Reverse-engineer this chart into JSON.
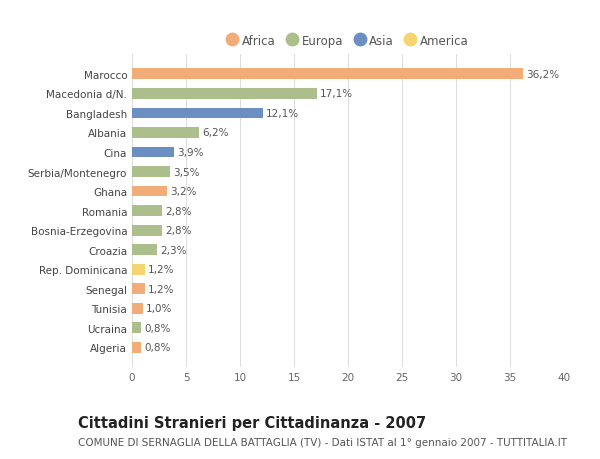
{
  "countries": [
    "Marocco",
    "Macedonia d/N.",
    "Bangladesh",
    "Albania",
    "Cina",
    "Serbia/Montenegro",
    "Ghana",
    "Romania",
    "Bosnia-Erzegovina",
    "Croazia",
    "Rep. Dominicana",
    "Senegal",
    "Tunisia",
    "Ucraina",
    "Algeria"
  ],
  "values": [
    36.2,
    17.1,
    12.1,
    6.2,
    3.9,
    3.5,
    3.2,
    2.8,
    2.8,
    2.3,
    1.2,
    1.2,
    1.0,
    0.8,
    0.8
  ],
  "labels": [
    "36,2%",
    "17,1%",
    "12,1%",
    "6,2%",
    "3,9%",
    "3,5%",
    "3,2%",
    "2,8%",
    "2,8%",
    "2,3%",
    "1,2%",
    "1,2%",
    "1,0%",
    "0,8%",
    "0,8%"
  ],
  "continents": [
    "Africa",
    "Europa",
    "Asia",
    "Europa",
    "Asia",
    "Europa",
    "Africa",
    "Europa",
    "Europa",
    "Europa",
    "America",
    "Africa",
    "Africa",
    "Europa",
    "Africa"
  ],
  "colors": {
    "Africa": "#F2AC78",
    "Europa": "#ABBE8C",
    "Asia": "#6B8FC2",
    "America": "#F5D472"
  },
  "legend_order": [
    "Africa",
    "Europa",
    "Asia",
    "America"
  ],
  "title": "Cittadini Stranieri per Cittadinanza - 2007",
  "subtitle": "COMUNE DI SERNAGLIA DELLA BATTAGLIA (TV) - Dati ISTAT al 1° gennaio 2007 - TUTTITALIA.IT",
  "xlim": [
    0,
    40
  ],
  "xticks": [
    0,
    5,
    10,
    15,
    20,
    25,
    30,
    35,
    40
  ],
  "bg_color": "#FFFFFF",
  "grid_color": "#DDDDDD",
  "bar_height": 0.55,
  "title_fontsize": 10.5,
  "subtitle_fontsize": 7.5,
  "label_fontsize": 7.5,
  "tick_fontsize": 7.5,
  "legend_fontsize": 8.5
}
